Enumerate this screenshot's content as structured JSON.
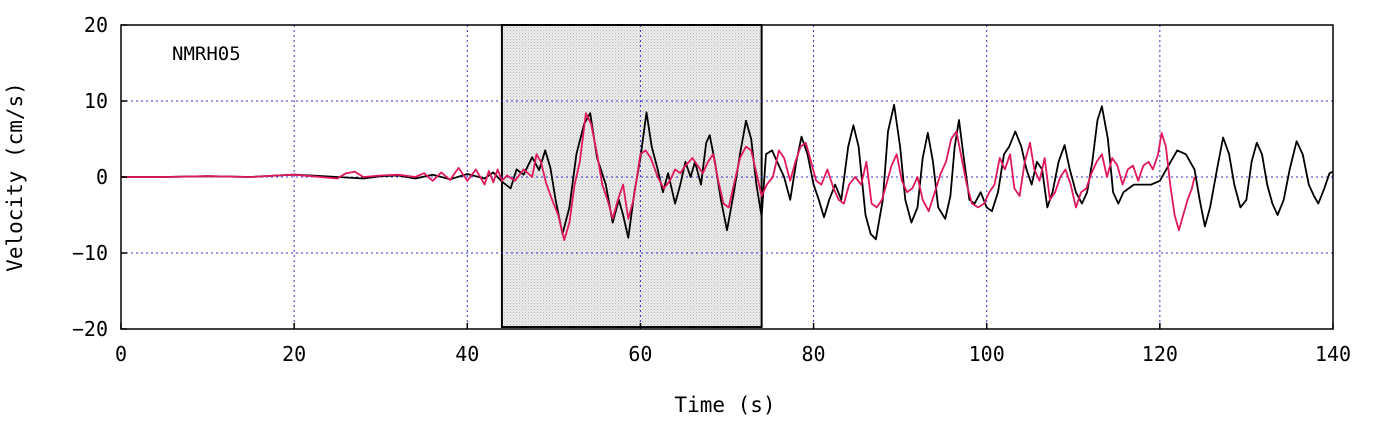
{
  "chart_data": {
    "type": "line",
    "station": "NMRH05",
    "xlabel": "Time (s)",
    "ylabel": "Velocity (cm/s)",
    "xlim": [
      0,
      140
    ],
    "ylim": [
      -20,
      20
    ],
    "x_ticks": [
      0,
      20,
      40,
      60,
      80,
      100,
      120,
      140
    ],
    "y_ticks": [
      20,
      10,
      0,
      -10,
      -20
    ],
    "x_tick_labels": [
      "0",
      "20",
      "40",
      "60",
      "80",
      "100",
      "120",
      "140"
    ],
    "y_tick_labels": [
      "20",
      "10",
      "0",
      "−10",
      "−20"
    ],
    "grid": true,
    "highlight_window": {
      "x_start": 44,
      "x_end": 74
    },
    "series": [
      {
        "color": "#000000",
        "points": [
          [
            0,
            0
          ],
          [
            5,
            0
          ],
          [
            10,
            0.1
          ],
          [
            15,
            0
          ],
          [
            18,
            0.2
          ],
          [
            20,
            0.3
          ],
          [
            22,
            0.2
          ],
          [
            25,
            0
          ],
          [
            28,
            -0.2
          ],
          [
            30,
            0.1
          ],
          [
            32,
            0.2
          ],
          [
            34,
            -0.2
          ],
          [
            36,
            0.3
          ],
          [
            38,
            -0.3
          ],
          [
            40,
            0.4
          ],
          [
            42,
            -0.2
          ],
          [
            43,
            0.6
          ],
          [
            44,
            -0.6
          ],
          [
            45,
            -1.5
          ],
          [
            45.7,
            1.0
          ],
          [
            46.5,
            0.3
          ],
          [
            47.5,
            2.6
          ],
          [
            48.3,
            0.9
          ],
          [
            49,
            3.5
          ],
          [
            49.6,
            1.2
          ],
          [
            50.2,
            -3.0
          ],
          [
            51,
            -7.5
          ],
          [
            51.8,
            -4.0
          ],
          [
            52.6,
            3.0
          ],
          [
            53.5,
            7.0
          ],
          [
            54.2,
            8.4
          ],
          [
            55,
            2.5
          ],
          [
            56,
            -1.0
          ],
          [
            56.8,
            -6.0
          ],
          [
            57.5,
            -3.0
          ],
          [
            58,
            -5.0
          ],
          [
            58.6,
            -8.0
          ],
          [
            59.3,
            -2.0
          ],
          [
            60,
            2.5
          ],
          [
            60.7,
            8.5
          ],
          [
            61.3,
            4.0
          ],
          [
            62,
            1.0
          ],
          [
            62.6,
            -2.0
          ],
          [
            63.2,
            0.5
          ],
          [
            64,
            -3.5
          ],
          [
            64.6,
            -1.0
          ],
          [
            65.2,
            2.0
          ],
          [
            65.8,
            0.0
          ],
          [
            66.3,
            2.0
          ],
          [
            67,
            -1.0
          ],
          [
            67.6,
            4.5
          ],
          [
            68,
            5.5
          ],
          [
            68.6,
            2.0
          ],
          [
            69.3,
            -3.0
          ],
          [
            70,
            -7.0
          ],
          [
            70.8,
            -2.0
          ],
          [
            71.5,
            3.0
          ],
          [
            72.2,
            7.4
          ],
          [
            72.8,
            5.0
          ],
          [
            73.4,
            -1.0
          ],
          [
            74,
            -5.2
          ],
          [
            74.5,
            3.0
          ],
          [
            75.2,
            3.5
          ],
          [
            76,
            1.5
          ],
          [
            76.6,
            0.0
          ],
          [
            77.3,
            -3.0
          ],
          [
            78,
            2.0
          ],
          [
            78.6,
            5.3
          ],
          [
            79.3,
            3.0
          ],
          [
            80,
            -1.0
          ],
          [
            80.6,
            -3.0
          ],
          [
            81.2,
            -5.3
          ],
          [
            81.8,
            -3.0
          ],
          [
            82.5,
            -1.0
          ],
          [
            83.2,
            -3.0
          ],
          [
            84,
            4.0
          ],
          [
            84.6,
            6.8
          ],
          [
            85.2,
            4.0
          ],
          [
            86,
            -5.0
          ],
          [
            86.6,
            -7.5
          ],
          [
            87.2,
            -8.2
          ],
          [
            88,
            -3.0
          ],
          [
            88.6,
            6.0
          ],
          [
            89.3,
            9.5
          ],
          [
            90,
            4.0
          ],
          [
            90.6,
            -3.0
          ],
          [
            91.3,
            -6.0
          ],
          [
            92,
            -4.0
          ],
          [
            92.6,
            2.5
          ],
          [
            93.2,
            5.8
          ],
          [
            93.8,
            2.0
          ],
          [
            94.4,
            -4.0
          ],
          [
            95.2,
            -5.5
          ],
          [
            95.8,
            -2.5
          ],
          [
            96.3,
            4.0
          ],
          [
            96.8,
            7.5
          ],
          [
            97.3,
            3.0
          ],
          [
            98,
            -3.0
          ],
          [
            98.6,
            -3.5
          ],
          [
            99.3,
            -2.0
          ],
          [
            100,
            -4.0
          ],
          [
            100.6,
            -4.5
          ],
          [
            101.3,
            -2.0
          ],
          [
            102,
            3.0
          ],
          [
            102.6,
            4.0
          ],
          [
            103.3,
            6.0
          ],
          [
            104,
            4.0
          ],
          [
            104.6,
            1.0
          ],
          [
            105.2,
            -1.0
          ],
          [
            105.8,
            2.0
          ],
          [
            106.4,
            1.0
          ],
          [
            107,
            -4.0
          ],
          [
            107.6,
            -2.0
          ],
          [
            108.3,
            2.0
          ],
          [
            109,
            4.2
          ],
          [
            109.6,
            1.0
          ],
          [
            110.3,
            -2.0
          ],
          [
            111,
            -3.5
          ],
          [
            111.6,
            -2.0
          ],
          [
            112.2,
            2.0
          ],
          [
            112.8,
            7.5
          ],
          [
            113.3,
            9.3
          ],
          [
            114,
            5.0
          ],
          [
            114.6,
            -2.0
          ],
          [
            115.2,
            -3.5
          ],
          [
            115.8,
            -2.0
          ],
          [
            116.4,
            -1.5
          ],
          [
            117,
            -1.0
          ],
          [
            118,
            -1.0
          ],
          [
            119,
            -1.0
          ],
          [
            120,
            -0.5
          ],
          [
            121,
            1.5
          ],
          [
            122,
            3.5
          ],
          [
            123,
            3.0
          ],
          [
            124,
            1.0
          ],
          [
            124.6,
            -3.0
          ],
          [
            125.2,
            -6.5
          ],
          [
            125.8,
            -4.0
          ],
          [
            126.6,
            1.0
          ],
          [
            127.3,
            5.2
          ],
          [
            128,
            3.0
          ],
          [
            128.6,
            -1.0
          ],
          [
            129.3,
            -4.0
          ],
          [
            130,
            -3.0
          ],
          [
            130.6,
            2.0
          ],
          [
            131.2,
            4.5
          ],
          [
            131.8,
            3.0
          ],
          [
            132.4,
            -1.0
          ],
          [
            133,
            -3.5
          ],
          [
            133.6,
            -5.0
          ],
          [
            134.3,
            -3.0
          ],
          [
            135,
            1.0
          ],
          [
            135.8,
            4.7
          ],
          [
            136.5,
            3.0
          ],
          [
            137.2,
            -1.0
          ],
          [
            137.8,
            -2.5
          ],
          [
            138.3,
            -3.5
          ],
          [
            139,
            -1.5
          ],
          [
            139.6,
            0.5
          ],
          [
            140,
            0.7
          ]
        ]
      },
      {
        "color": "#e0185c",
        "points": [
          [
            0,
            0
          ],
          [
            5,
            0
          ],
          [
            10,
            0.1
          ],
          [
            15,
            0
          ],
          [
            18,
            0.2
          ],
          [
            20,
            0.3
          ],
          [
            22,
            0.1
          ],
          [
            25,
            -0.2
          ],
          [
            26,
            0.5
          ],
          [
            27,
            0.7
          ],
          [
            28,
            0
          ],
          [
            30,
            0.2
          ],
          [
            32,
            0.3
          ],
          [
            34,
            0
          ],
          [
            35,
            0.5
          ],
          [
            36,
            -0.5
          ],
          [
            37,
            0.6
          ],
          [
            38,
            -0.4
          ],
          [
            39,
            1.2
          ],
          [
            40,
            -0.5
          ],
          [
            41,
            1.0
          ],
          [
            42,
            -1.0
          ],
          [
            42.5,
            0.8
          ],
          [
            43,
            -0.7
          ],
          [
            43.5,
            1.0
          ],
          [
            44,
            -0.5
          ],
          [
            44.6,
            0.2
          ],
          [
            45.5,
            -0.5
          ],
          [
            46.5,
            1.0
          ],
          [
            47.5,
            0.0
          ],
          [
            48,
            3.0
          ],
          [
            48.5,
            2.0
          ],
          [
            49.1,
            -0.8
          ],
          [
            49.8,
            -3.0
          ],
          [
            50.5,
            -5.0
          ],
          [
            51.2,
            -8.3
          ],
          [
            51.8,
            -6.0
          ],
          [
            52.4,
            -1.0
          ],
          [
            53,
            2.0
          ],
          [
            53.7,
            8.4
          ],
          [
            54.3,
            7.0
          ],
          [
            55,
            3.0
          ],
          [
            55.6,
            -1.0
          ],
          [
            56.2,
            -3.0
          ],
          [
            56.8,
            -5.5
          ],
          [
            57.4,
            -3.0
          ],
          [
            58,
            -1.0
          ],
          [
            58.6,
            -5.5
          ],
          [
            59.2,
            -3.0
          ],
          [
            60,
            3.0
          ],
          [
            60.6,
            3.5
          ],
          [
            61.2,
            2.5
          ],
          [
            62,
            0.0
          ],
          [
            62.7,
            -1.5
          ],
          [
            63.4,
            -0.5
          ],
          [
            64,
            1.0
          ],
          [
            64.6,
            0.5
          ],
          [
            65.2,
            1.5
          ],
          [
            66,
            2.5
          ],
          [
            66.6,
            1.5
          ],
          [
            67.2,
            0.5
          ],
          [
            67.8,
            2.0
          ],
          [
            68.4,
            3.0
          ],
          [
            69,
            -0.5
          ],
          [
            69.6,
            -3.5
          ],
          [
            70.2,
            -4.0
          ],
          [
            70.8,
            -1.0
          ],
          [
            71.5,
            2.5
          ],
          [
            72.2,
            4.0
          ],
          [
            72.8,
            3.5
          ],
          [
            73.3,
            1.0
          ],
          [
            74,
            -2.5
          ],
          [
            74.6,
            -1.0
          ],
          [
            75.3,
            0.0
          ],
          [
            76,
            3.5
          ],
          [
            76.6,
            2.5
          ],
          [
            77.3,
            -0.5
          ],
          [
            77.9,
            2.0
          ],
          [
            78.5,
            4.0
          ],
          [
            79.1,
            4.5
          ],
          [
            79.7,
            2.0
          ],
          [
            80.3,
            -0.5
          ],
          [
            80.9,
            -1.0
          ],
          [
            81.6,
            1.0
          ],
          [
            82.3,
            -1.5
          ],
          [
            82.9,
            -3.0
          ],
          [
            83.5,
            -3.5
          ],
          [
            84.1,
            -1.0
          ],
          [
            84.8,
            0.0
          ],
          [
            85.5,
            -1.0
          ],
          [
            86.1,
            2.0
          ],
          [
            86.7,
            -3.5
          ],
          [
            87.3,
            -4.0
          ],
          [
            87.9,
            -3.0
          ],
          [
            88.4,
            -1.0
          ],
          [
            89,
            1.5
          ],
          [
            89.6,
            3.0
          ],
          [
            90.2,
            -0.5
          ],
          [
            90.8,
            -2.0
          ],
          [
            91.4,
            -1.5
          ],
          [
            92,
            0.0
          ],
          [
            92.6,
            -3.0
          ],
          [
            93.3,
            -4.5
          ],
          [
            94,
            -2.0
          ],
          [
            94.7,
            0.5
          ],
          [
            95.3,
            2.0
          ],
          [
            95.9,
            5.0
          ],
          [
            96.5,
            6.0
          ],
          [
            97.1,
            2.5
          ],
          [
            97.7,
            -1.0
          ],
          [
            98.3,
            -3.5
          ],
          [
            99,
            -4.0
          ],
          [
            99.7,
            -3.5
          ],
          [
            100.3,
            -2.0
          ],
          [
            100.9,
            -1.0
          ],
          [
            101.5,
            2.5
          ],
          [
            102.1,
            1.0
          ],
          [
            102.7,
            3.0
          ],
          [
            103.2,
            -1.5
          ],
          [
            103.8,
            -2.5
          ],
          [
            104.4,
            2.0
          ],
          [
            105,
            4.5
          ],
          [
            105.5,
            1.0
          ],
          [
            106.1,
            -0.5
          ],
          [
            106.7,
            2.5
          ],
          [
            107.3,
            -3.0
          ],
          [
            107.9,
            -2.0
          ],
          [
            108.5,
            0.0
          ],
          [
            109.1,
            1.0
          ],
          [
            109.7,
            -1.0
          ],
          [
            110.3,
            -4.0
          ],
          [
            110.9,
            -2.0
          ],
          [
            111.5,
            -1.5
          ],
          [
            112.1,
            0.5
          ],
          [
            112.7,
            2.0
          ],
          [
            113.3,
            3.0
          ],
          [
            113.9,
            0.0
          ],
          [
            114.5,
            2.5
          ],
          [
            115.1,
            1.5
          ],
          [
            115.7,
            -1.0
          ],
          [
            116.3,
            1.0
          ],
          [
            116.9,
            1.5
          ],
          [
            117.5,
            -0.5
          ],
          [
            118.1,
            1.5
          ],
          [
            118.7,
            2.0
          ],
          [
            119.2,
            1.0
          ],
          [
            119.8,
            3.0
          ],
          [
            120.2,
            5.8
          ],
          [
            120.7,
            4.0
          ],
          [
            121.2,
            -1.0
          ],
          [
            121.7,
            -5.0
          ],
          [
            122.2,
            -7.0
          ],
          [
            122.7,
            -5.0
          ],
          [
            123.2,
            -3.0
          ],
          [
            123.7,
            -1.5
          ],
          [
            124,
            0.0
          ]
        ]
      }
    ]
  }
}
